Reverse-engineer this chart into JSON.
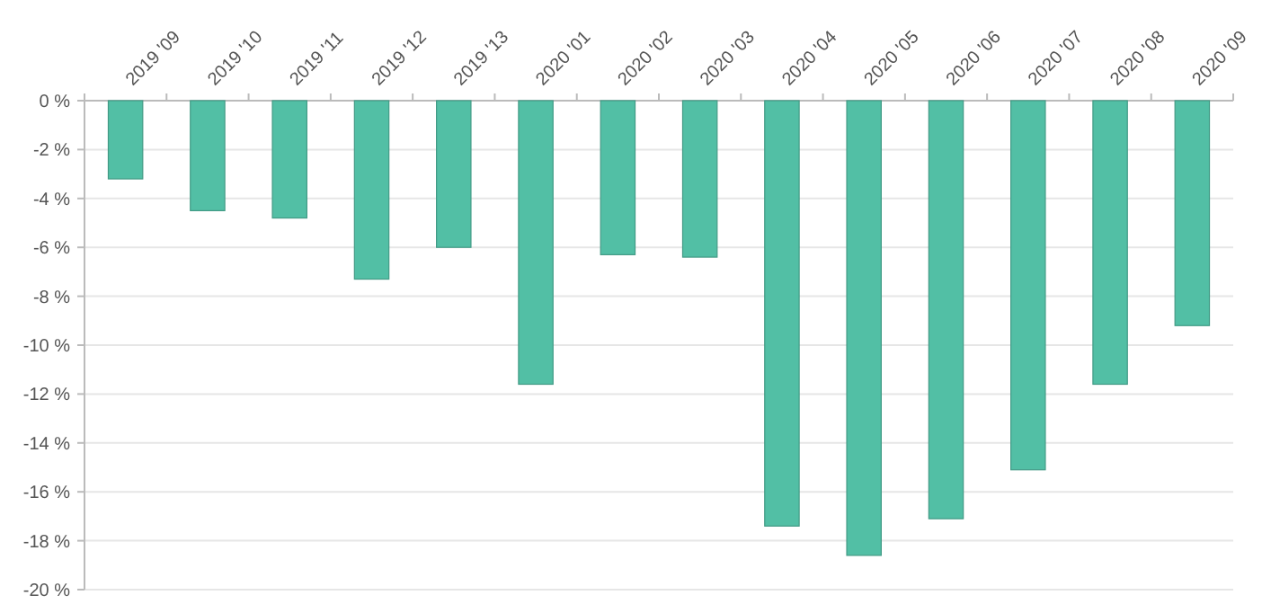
{
  "chart_data": {
    "type": "bar",
    "categories": [
      "2019 '09",
      "2019 '10",
      "2019 '11",
      "2019 '12",
      "2019 '13",
      "2020 '01",
      "2020 '02",
      "2020 '03",
      "2020 '04",
      "2020 '05",
      "2020 '06",
      "2020 '07",
      "2020 '08",
      "2020 '09"
    ],
    "values": [
      -3.2,
      -4.5,
      -4.8,
      -7.3,
      -6.0,
      -11.6,
      -6.3,
      -6.4,
      -17.4,
      -18.6,
      -17.1,
      -15.1,
      -11.6,
      -9.2
    ],
    "color": "#52bfa5",
    "ylim": [
      -20,
      0
    ],
    "yticks": [
      {
        "value": 0,
        "label": "0 %"
      },
      {
        "value": -2,
        "label": "-2 %"
      },
      {
        "value": -4,
        "label": "-4 %"
      },
      {
        "value": -6,
        "label": "-6 %"
      },
      {
        "value": -8,
        "label": "-8 %"
      },
      {
        "value": -10,
        "label": "-10 %"
      },
      {
        "value": -12,
        "label": "-12 %"
      },
      {
        "value": -14,
        "label": "-14 %"
      },
      {
        "value": -16,
        "label": "-16 %"
      },
      {
        "value": -18,
        "label": "-18 %"
      },
      {
        "value": -20,
        "label": "-20 %"
      }
    ],
    "grid": "y"
  }
}
